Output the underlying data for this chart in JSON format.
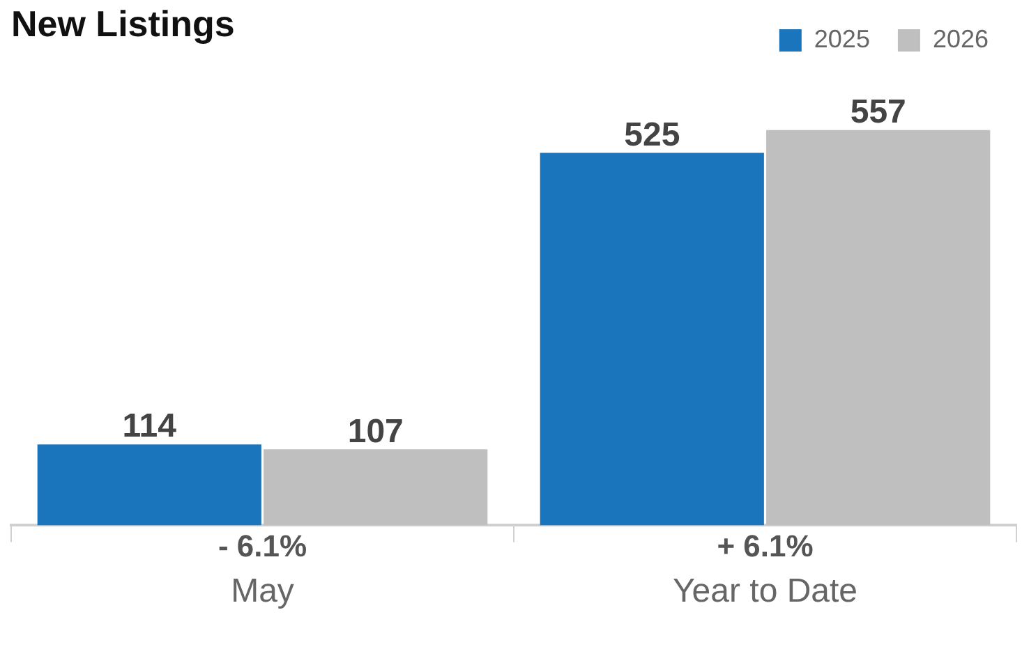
{
  "chart_data": {
    "type": "bar",
    "title": "New Listings",
    "categories": [
      "May",
      "Year to Date"
    ],
    "series": [
      {
        "name": "2025",
        "color": "#1a75bc",
        "values": [
          114,
          525
        ]
      },
      {
        "name": "2026",
        "color": "#bfbfbf",
        "values": [
          107,
          557
        ]
      }
    ],
    "data_labels": true,
    "legend": "top right",
    "annotations": [
      "- 6.1%",
      "+ 6.1%"
    ]
  }
}
